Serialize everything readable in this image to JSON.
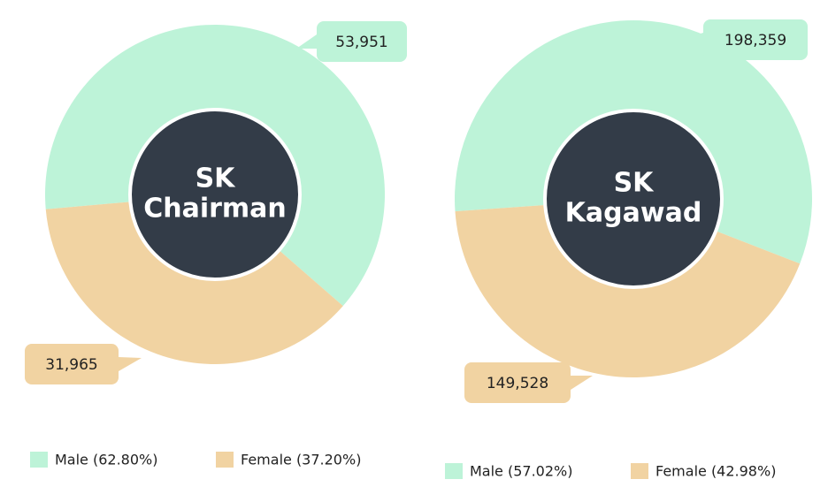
{
  "chart_data": [
    {
      "type": "pie",
      "donut": true,
      "center_label": [
        "SK",
        "Chairman"
      ],
      "categories": [
        "Male (62.80%)",
        "Female (37.20%)"
      ],
      "values": [
        53951,
        31965
      ],
      "value_labels": [
        "53,951",
        "31,965"
      ],
      "colors": [
        "#bdf3d8",
        "#f1d3a2"
      ]
    },
    {
      "type": "pie",
      "donut": true,
      "center_label": [
        "SK",
        "Kagawad"
      ],
      "categories": [
        "Male (57.02%)",
        "Female (42.98%)"
      ],
      "values": [
        198359,
        149528
      ],
      "value_labels": [
        "198,359",
        "149,528"
      ],
      "colors": [
        "#bdf3d8",
        "#f1d3a2"
      ]
    }
  ]
}
